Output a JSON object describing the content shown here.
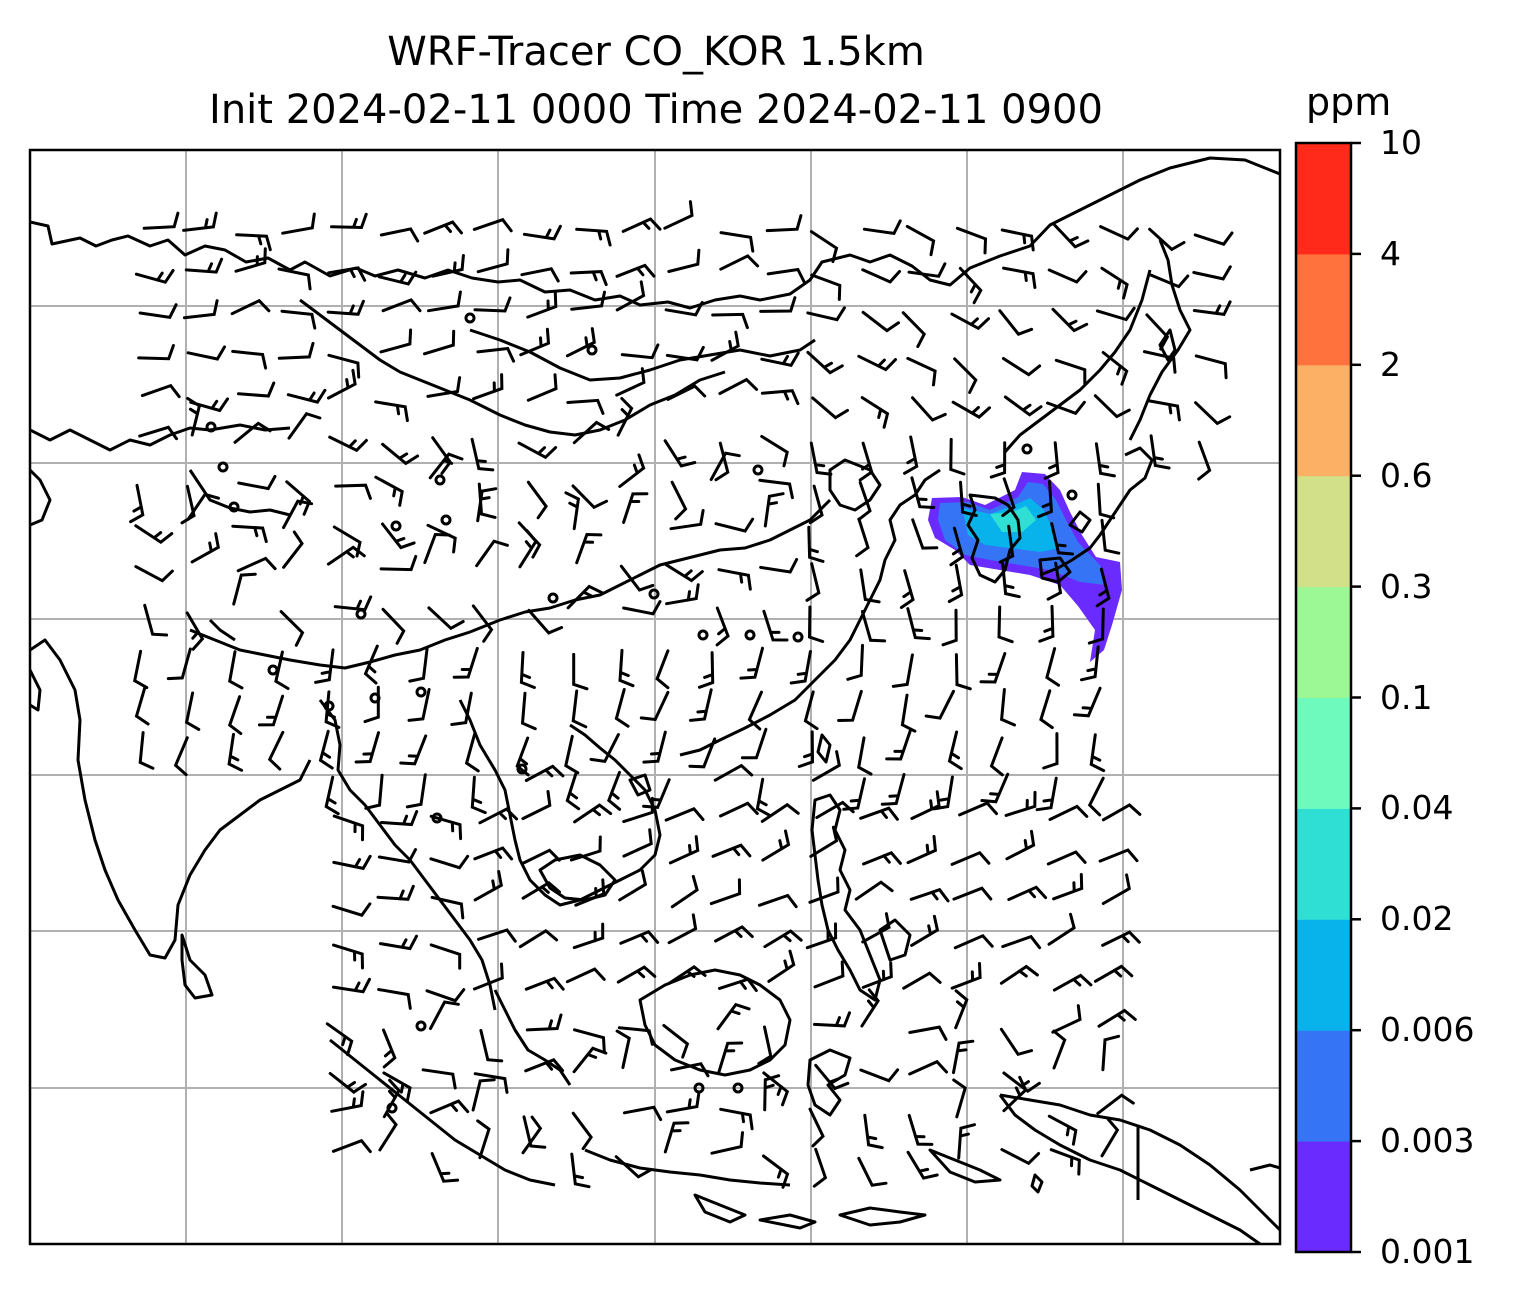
{
  "title": {
    "line1": "WRF-Tracer CO_KOR 1.5km",
    "line2": "Init 2024-02-11 0000 Time 2024-02-11 0900"
  },
  "colorbar": {
    "unit": "ppm",
    "levels": [
      "0.001",
      "0.003",
      "0.006",
      "0.02",
      "0.04",
      "0.1",
      "0.3",
      "0.6",
      "2",
      "4",
      "10"
    ],
    "colors": [
      "#6a2bff",
      "#3574f5",
      "#08b3ec",
      "#30dfd4",
      "#6efabd",
      "#9cf795",
      "#d1e089",
      "#fcb065",
      "#ff713d",
      "#ff2a19"
    ]
  },
  "map": {
    "gridlines": true,
    "grid_color": "#b0b0b0",
    "coast_color": "#000000",
    "wind_barb_color": "#000000",
    "tracer_region": "Korean Peninsula / Korea–Japan area"
  }
}
